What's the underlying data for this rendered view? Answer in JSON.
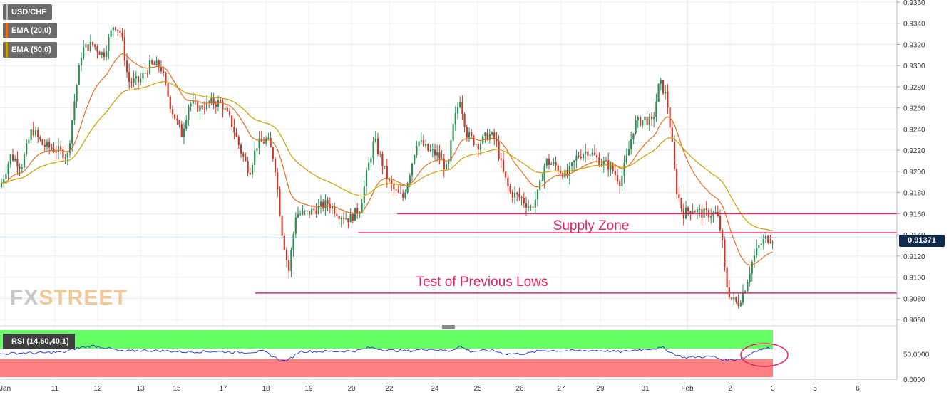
{
  "legend": {
    "symbol": "USD/CHF",
    "ema20": "EMA (20,0)",
    "ema50": "EMA (50,0)"
  },
  "watermark": {
    "part1": "FX",
    "part2": "STREET"
  },
  "rsi_label": "RSI (14,60,40,1)",
  "current_price_label": "0.91371",
  "colors": {
    "candle_up": "#2e8b57",
    "candle_down": "#c0392b",
    "ema20": "#e07020",
    "ema50": "#c9a000",
    "level_line": "#e0245e",
    "price_line": "#1c3a5e",
    "rsi_line": "#2233cc",
    "rsi_upper_zone": "#66ff66",
    "rsi_lower_zone": "#ff8080"
  },
  "chart_data": {
    "type": "candlestick",
    "symbol": "USD/CHF",
    "ylim": [
      0.9054,
      0.9362
    ],
    "y_ticks": [
      "0.9360",
      "0.9340",
      "0.9320",
      "0.9300",
      "0.9280",
      "0.9260",
      "0.9240",
      "0.9220",
      "0.9200",
      "0.9180",
      "0.9160",
      "0.9140",
      "0.9120",
      "0.9100",
      "0.9080",
      "0.9060"
    ],
    "x_ticks": [
      "Jan",
      "11",
      "12",
      "13",
      "15",
      "17",
      "18",
      "19",
      "20",
      "22",
      "24",
      "25",
      "26",
      "27",
      "29",
      "31",
      "Feb",
      "2",
      "3",
      "5",
      "6"
    ],
    "current_price": 0.91371,
    "price_path": [
      [
        0,
        0.9185
      ],
      [
        15,
        0.9215
      ],
      [
        30,
        0.9205
      ],
      [
        45,
        0.924
      ],
      [
        60,
        0.9225
      ],
      [
        80,
        0.922
      ],
      [
        95,
        0.9215
      ],
      [
        105,
        0.927
      ],
      [
        115,
        0.9315
      ],
      [
        130,
        0.932
      ],
      [
        145,
        0.931
      ],
      [
        160,
        0.934
      ],
      [
        170,
        0.933
      ],
      [
        180,
        0.9285
      ],
      [
        195,
        0.9285
      ],
      [
        210,
        0.93
      ],
      [
        225,
        0.93
      ],
      [
        240,
        0.926
      ],
      [
        255,
        0.9235
      ],
      [
        265,
        0.9265
      ],
      [
        280,
        0.926
      ],
      [
        295,
        0.9265
      ],
      [
        310,
        0.9265
      ],
      [
        325,
        0.9245
      ],
      [
        340,
        0.9215
      ],
      [
        350,
        0.92
      ],
      [
        360,
        0.9225
      ],
      [
        375,
        0.923
      ],
      [
        385,
        0.921
      ],
      [
        395,
        0.9145
      ],
      [
        405,
        0.9105
      ],
      [
        415,
        0.916
      ],
      [
        430,
        0.916
      ],
      [
        445,
        0.9165
      ],
      [
        460,
        0.917
      ],
      [
        475,
        0.916
      ],
      [
        490,
        0.9155
      ],
      [
        505,
        0.9165
      ],
      [
        515,
        0.92
      ],
      [
        525,
        0.923
      ],
      [
        535,
        0.921
      ],
      [
        545,
        0.919
      ],
      [
        555,
        0.918
      ],
      [
        565,
        0.9175
      ],
      [
        575,
        0.92
      ],
      [
        585,
        0.923
      ],
      [
        600,
        0.922
      ],
      [
        615,
        0.9215
      ],
      [
        628,
        0.92
      ],
      [
        635,
        0.924
      ],
      [
        645,
        0.927
      ],
      [
        655,
        0.9235
      ],
      [
        670,
        0.9225
      ],
      [
        685,
        0.9235
      ],
      [
        695,
        0.923
      ],
      [
        705,
        0.92
      ],
      [
        715,
        0.918
      ],
      [
        730,
        0.9175
      ],
      [
        745,
        0.9165
      ],
      [
        755,
        0.918
      ],
      [
        765,
        0.921
      ],
      [
        780,
        0.9205
      ],
      [
        795,
        0.9195
      ],
      [
        810,
        0.9215
      ],
      [
        825,
        0.922
      ],
      [
        840,
        0.921
      ],
      [
        855,
        0.9205
      ],
      [
        870,
        0.919
      ],
      [
        880,
        0.9215
      ],
      [
        890,
        0.9245
      ],
      [
        905,
        0.925
      ],
      [
        915,
        0.9245
      ],
      [
        925,
        0.9285
      ],
      [
        935,
        0.927
      ],
      [
        942,
        0.923
      ],
      [
        948,
        0.9185
      ],
      [
        958,
        0.916
      ],
      [
        970,
        0.9165
      ],
      [
        985,
        0.916
      ],
      [
        995,
        0.916
      ],
      [
        1005,
        0.916
      ],
      [
        1012,
        0.914
      ],
      [
        1018,
        0.9095
      ],
      [
        1025,
        0.908
      ],
      [
        1035,
        0.9075
      ],
      [
        1045,
        0.909
      ],
      [
        1055,
        0.9115
      ],
      [
        1065,
        0.913
      ],
      [
        1075,
        0.9137
      ],
      [
        1085,
        0.91371
      ]
    ],
    "levels": [
      {
        "name": "resistance-upper",
        "price": 0.916,
        "label": ""
      },
      {
        "name": "supply-zone",
        "price": 0.9142,
        "label": "Supply Zone"
      },
      {
        "name": "previous-lows",
        "price": 0.9085,
        "label": "Test of Previous Lows"
      }
    ],
    "rsi": {
      "label": "RSI (14,60,40,1)",
      "upper": 60,
      "lower": 40,
      "y_ticks": [
        "50.0000",
        "0.0000"
      ],
      "path": [
        [
          0,
          0.5
        ],
        [
          30,
          0.52
        ],
        [
          60,
          0.52
        ],
        [
          90,
          0.54
        ],
        [
          110,
          0.62
        ],
        [
          130,
          0.66
        ],
        [
          150,
          0.62
        ],
        [
          170,
          0.55
        ],
        [
          200,
          0.57
        ],
        [
          230,
          0.56
        ],
        [
          260,
          0.54
        ],
        [
          300,
          0.55
        ],
        [
          340,
          0.53
        ],
        [
          370,
          0.55
        ],
        [
          395,
          0.36
        ],
        [
          405,
          0.38
        ],
        [
          420,
          0.55
        ],
        [
          460,
          0.55
        ],
        [
          500,
          0.56
        ],
        [
          520,
          0.63
        ],
        [
          545,
          0.57
        ],
        [
          575,
          0.56
        ],
        [
          600,
          0.6
        ],
        [
          630,
          0.56
        ],
        [
          645,
          0.65
        ],
        [
          660,
          0.55
        ],
        [
          690,
          0.57
        ],
        [
          710,
          0.5
        ],
        [
          740,
          0.51
        ],
        [
          760,
          0.57
        ],
        [
          800,
          0.56
        ],
        [
          840,
          0.57
        ],
        [
          870,
          0.54
        ],
        [
          900,
          0.59
        ],
        [
          930,
          0.62
        ],
        [
          945,
          0.5
        ],
        [
          960,
          0.43
        ],
        [
          1000,
          0.45
        ],
        [
          1015,
          0.38
        ],
        [
          1030,
          0.39
        ],
        [
          1045,
          0.43
        ],
        [
          1060,
          0.57
        ],
        [
          1080,
          0.62
        ]
      ]
    }
  }
}
